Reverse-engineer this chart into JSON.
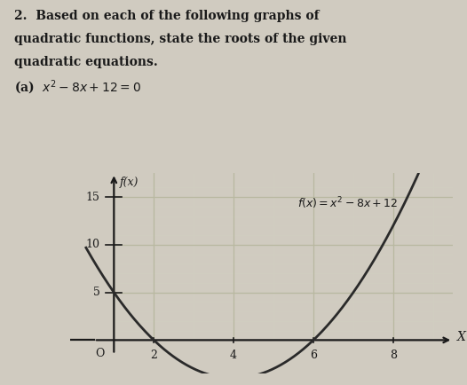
{
  "title_line1": "2.  Based on each of the following graphs of",
  "title_line2": "quadratic functions, state the roots of the given",
  "title_line3": "quadratic equations.",
  "subtitle": "(a)  $x^2 - 8x + 12 = 0$",
  "equation_label": "$f(x) = x^2 - 8x + 12$",
  "y_axis_label": "f(x)",
  "x_axis_label": "X",
  "x_ticks": [
    2,
    4,
    6,
    8
  ],
  "y_ticks": [
    5,
    10,
    15
  ],
  "x_origin": 1,
  "x_min": -0.1,
  "x_max": 9.5,
  "y_min": -3.5,
  "y_max": 17.5,
  "plot_x_start": 0.3,
  "plot_x_end": 8.8,
  "curve_color": "#2a2a2a",
  "grid_color_major": "#b8b8a0",
  "grid_color_minor": "#d0cec0",
  "axis_color": "#1a1a1a",
  "background_color": "#dedad0",
  "text_color": "#1a1a1a",
  "fig_background": "#d0cbc0",
  "title_fontsize": 10,
  "label_fontsize": 9,
  "tick_fontsize": 9
}
